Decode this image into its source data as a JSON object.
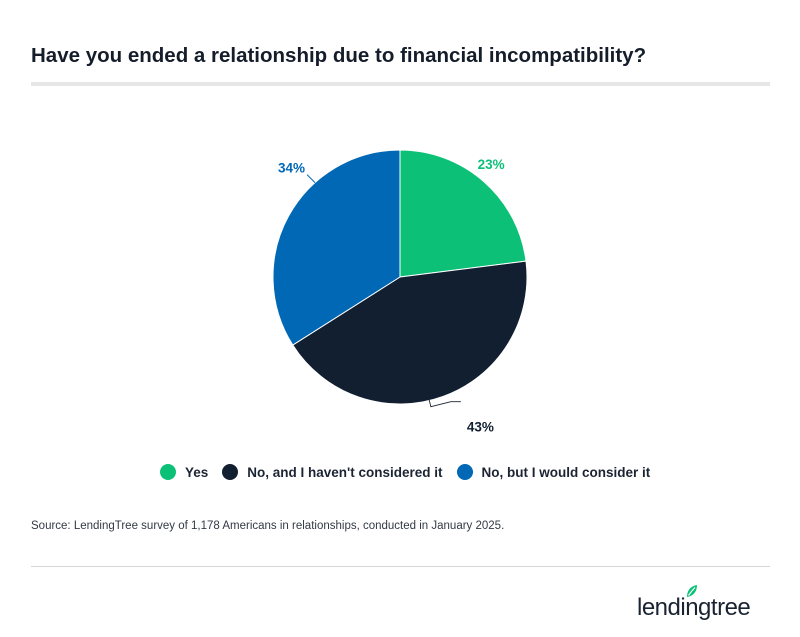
{
  "title": "Have you ended a relationship due to financial incompatibility?",
  "source": "Source: LendingTree survey of 1,178 Americans in relationships, conducted in January 2025.",
  "logo_text": "lendingtree",
  "chart_data": {
    "type": "pie",
    "title": "Have you ended a relationship due to financial incompatibility?",
    "start_angle_deg": 0,
    "direction": "clockwise",
    "slices": [
      {
        "label": "Yes",
        "value": 23,
        "display": "23%",
        "color": "#0cc177"
      },
      {
        "label": "No, and I haven't considered it",
        "value": 43,
        "display": "43%",
        "color": "#111f30"
      },
      {
        "label": "No, but I would consider it",
        "value": 34,
        "display": "34%",
        "color": "#0068b5"
      }
    ],
    "legend_position": "bottom"
  }
}
